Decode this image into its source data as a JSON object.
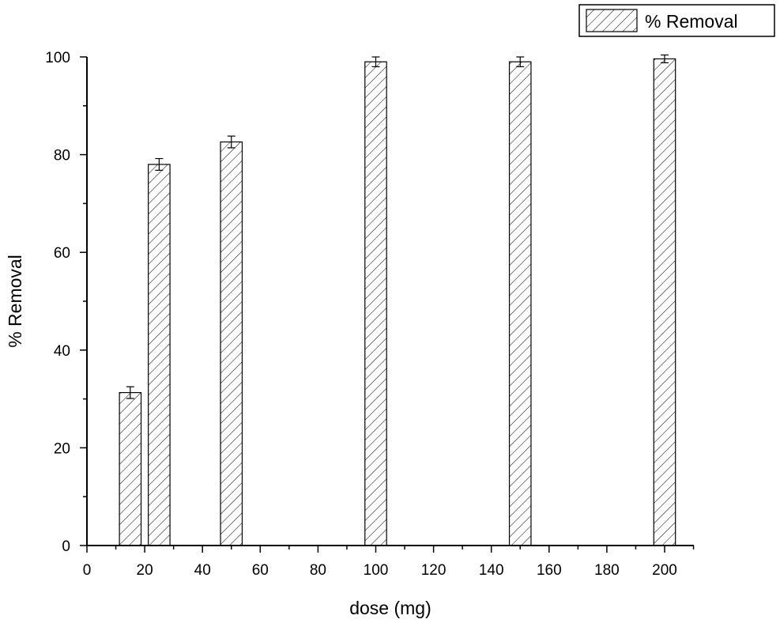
{
  "chart_data": {
    "type": "bar",
    "title": "",
    "xlabel": "dose (mg)",
    "ylabel": "% Removal",
    "xlim": [
      0,
      210
    ],
    "ylim": [
      0,
      100
    ],
    "x_ticks": [
      0,
      20,
      40,
      60,
      80,
      100,
      120,
      140,
      160,
      180,
      200
    ],
    "y_ticks": [
      0,
      20,
      40,
      60,
      80,
      100
    ],
    "x_minor_step": 10,
    "y_minor_step": 10,
    "bar_width_units": 7.5,
    "legend_position": "top-right",
    "bar_fill": "hatched",
    "series": [
      {
        "name": "% Removal",
        "x": [
          15,
          25,
          50,
          100,
          150,
          200
        ],
        "values": [
          31.3,
          78.0,
          82.6,
          99.0,
          99.0,
          99.6
        ],
        "errors": [
          1.2,
          1.2,
          1.2,
          1.0,
          1.0,
          0.8
        ]
      }
    ],
    "grid": false
  }
}
